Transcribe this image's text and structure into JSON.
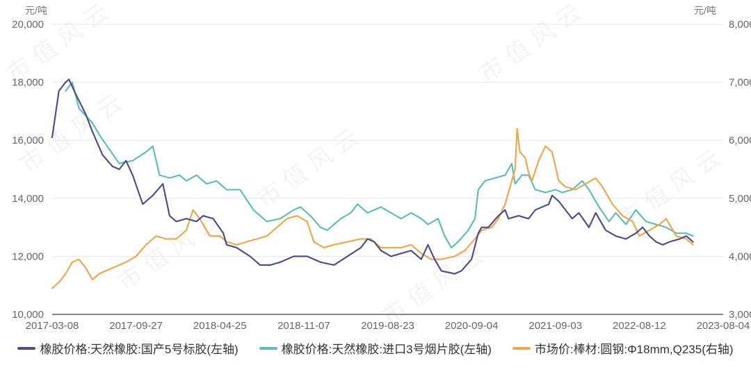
{
  "chart_data": {
    "type": "line",
    "left_unit": "元/吨",
    "right_unit": "元/吨",
    "left_axis": {
      "min": 10000,
      "max": 20000,
      "ticks": [
        "10,000",
        "12,000",
        "14,000",
        "16,000",
        "18,000",
        "20,000"
      ]
    },
    "right_axis": {
      "min": 3000,
      "max": 8000,
      "ticks": [
        "3,000",
        "4,000",
        "5,000",
        "6,000",
        "7,000",
        "8,000"
      ]
    },
    "x_ticks": [
      "2017-03-08",
      "2017-09-27",
      "2018-04-25",
      "2018-11-07",
      "2019-08-23",
      "2020-09-04",
      "2021-09-03",
      "2022-08-12",
      "2023-08-04"
    ],
    "legend_position": "bottom",
    "series": [
      {
        "name": "橡胶价格:天然橡胶:国产5号标胶(左轴)",
        "axis": "left",
        "color": "#4b4f8f",
        "points": [
          [
            0,
            16100
          ],
          [
            0.01,
            17700
          ],
          [
            0.02,
            18000
          ],
          [
            0.025,
            18100
          ],
          [
            0.035,
            17600
          ],
          [
            0.05,
            16900
          ],
          [
            0.06,
            16300
          ],
          [
            0.075,
            15500
          ],
          [
            0.09,
            15100
          ],
          [
            0.1,
            15000
          ],
          [
            0.11,
            15300
          ],
          [
            0.12,
            14800
          ],
          [
            0.135,
            13800
          ],
          [
            0.15,
            14100
          ],
          [
            0.165,
            14500
          ],
          [
            0.175,
            13400
          ],
          [
            0.185,
            13200
          ],
          [
            0.2,
            13300
          ],
          [
            0.215,
            13200
          ],
          [
            0.225,
            13400
          ],
          [
            0.24,
            13300
          ],
          [
            0.255,
            12800
          ],
          [
            0.26,
            12400
          ],
          [
            0.275,
            12300
          ],
          [
            0.295,
            12000
          ],
          [
            0.31,
            11700
          ],
          [
            0.325,
            11700
          ],
          [
            0.34,
            11800
          ],
          [
            0.36,
            12000
          ],
          [
            0.38,
            12000
          ],
          [
            0.4,
            11800
          ],
          [
            0.42,
            11700
          ],
          [
            0.44,
            12000
          ],
          [
            0.46,
            12300
          ],
          [
            0.47,
            12600
          ],
          [
            0.48,
            12500
          ],
          [
            0.49,
            12200
          ],
          [
            0.505,
            12000
          ],
          [
            0.52,
            12100
          ],
          [
            0.535,
            12200
          ],
          [
            0.55,
            11900
          ],
          [
            0.56,
            12400
          ],
          [
            0.57,
            11900
          ],
          [
            0.58,
            11500
          ],
          [
            0.6,
            11400
          ],
          [
            0.61,
            11500
          ],
          [
            0.625,
            11900
          ],
          [
            0.635,
            12800
          ],
          [
            0.64,
            13000
          ],
          [
            0.65,
            13000
          ],
          [
            0.665,
            13400
          ],
          [
            0.675,
            13600
          ],
          [
            0.68,
            13300
          ],
          [
            0.695,
            13400
          ],
          [
            0.71,
            13300
          ],
          [
            0.72,
            13600
          ],
          [
            0.74,
            13800
          ],
          [
            0.745,
            14100
          ],
          [
            0.755,
            13900
          ],
          [
            0.765,
            13600
          ],
          [
            0.775,
            13300
          ],
          [
            0.785,
            13500
          ],
          [
            0.8,
            13000
          ],
          [
            0.81,
            13500
          ],
          [
            0.825,
            12900
          ],
          [
            0.84,
            12700
          ],
          [
            0.855,
            12600
          ],
          [
            0.87,
            12800
          ],
          [
            0.88,
            13000
          ],
          [
            0.89,
            12700
          ],
          [
            0.9,
            12500
          ],
          [
            0.91,
            12400
          ],
          [
            0.92,
            12500
          ],
          [
            0.935,
            12600
          ],
          [
            0.945,
            12700
          ],
          [
            0.955,
            12500
          ]
        ]
      },
      {
        "name": "橡胶价格:天然橡胶:进口3号烟片胶(左轴)",
        "axis": "left",
        "color": "#5cc0b0",
        "points": [
          [
            0.02,
            17700
          ],
          [
            0.03,
            18000
          ],
          [
            0.04,
            17100
          ],
          [
            0.06,
            16600
          ],
          [
            0.07,
            16200
          ],
          [
            0.085,
            15700
          ],
          [
            0.1,
            15200
          ],
          [
            0.12,
            15300
          ],
          [
            0.14,
            15600
          ],
          [
            0.15,
            15800
          ],
          [
            0.16,
            14800
          ],
          [
            0.175,
            14700
          ],
          [
            0.19,
            14800
          ],
          [
            0.2,
            14600
          ],
          [
            0.215,
            14800
          ],
          [
            0.23,
            14500
          ],
          [
            0.245,
            14600
          ],
          [
            0.26,
            14300
          ],
          [
            0.28,
            14300
          ],
          [
            0.3,
            13600
          ],
          [
            0.32,
            13200
          ],
          [
            0.34,
            13300
          ],
          [
            0.36,
            13600
          ],
          [
            0.37,
            13700
          ],
          [
            0.385,
            13400
          ],
          [
            0.4,
            13000
          ],
          [
            0.41,
            12900
          ],
          [
            0.43,
            13300
          ],
          [
            0.445,
            13500
          ],
          [
            0.455,
            13800
          ],
          [
            0.47,
            13500
          ],
          [
            0.49,
            13700
          ],
          [
            0.505,
            13500
          ],
          [
            0.52,
            13300
          ],
          [
            0.535,
            13500
          ],
          [
            0.55,
            13300
          ],
          [
            0.56,
            13100
          ],
          [
            0.575,
            13300
          ],
          [
            0.585,
            12700
          ],
          [
            0.595,
            12300
          ],
          [
            0.605,
            12500
          ],
          [
            0.62,
            12900
          ],
          [
            0.63,
            13300
          ],
          [
            0.635,
            14300
          ],
          [
            0.645,
            14600
          ],
          [
            0.66,
            14700
          ],
          [
            0.675,
            14800
          ],
          [
            0.685,
            15200
          ],
          [
            0.69,
            14500
          ],
          [
            0.7,
            14800
          ],
          [
            0.71,
            14800
          ],
          [
            0.72,
            14300
          ],
          [
            0.735,
            14200
          ],
          [
            0.75,
            14300
          ],
          [
            0.76,
            14200
          ],
          [
            0.775,
            14300
          ],
          [
            0.79,
            14600
          ],
          [
            0.8,
            14300
          ],
          [
            0.815,
            13700
          ],
          [
            0.83,
            13200
          ],
          [
            0.84,
            13500
          ],
          [
            0.855,
            13100
          ],
          [
            0.87,
            13600
          ],
          [
            0.885,
            13200
          ],
          [
            0.9,
            13100
          ],
          [
            0.915,
            13000
          ],
          [
            0.93,
            12800
          ],
          [
            0.945,
            12800
          ],
          [
            0.955,
            12700
          ]
        ]
      },
      {
        "name": "市场价:棒材:圆钢:Φ18mm,Q235(右轴)",
        "axis": "right",
        "color": "#f0a64a",
        "points": [
          [
            0,
            3450
          ],
          [
            0.01,
            3550
          ],
          [
            0.02,
            3700
          ],
          [
            0.03,
            3900
          ],
          [
            0.04,
            3950
          ],
          [
            0.05,
            3800
          ],
          [
            0.06,
            3600
          ],
          [
            0.07,
            3700
          ],
          [
            0.08,
            3750
          ],
          [
            0.09,
            3800
          ],
          [
            0.1,
            3850
          ],
          [
            0.11,
            3900
          ],
          [
            0.125,
            4000
          ],
          [
            0.14,
            4200
          ],
          [
            0.155,
            4350
          ],
          [
            0.17,
            4300
          ],
          [
            0.185,
            4300
          ],
          [
            0.2,
            4450
          ],
          [
            0.21,
            4800
          ],
          [
            0.22,
            4650
          ],
          [
            0.235,
            4350
          ],
          [
            0.25,
            4350
          ],
          [
            0.26,
            4250
          ],
          [
            0.275,
            4200
          ],
          [
            0.29,
            4250
          ],
          [
            0.305,
            4300
          ],
          [
            0.32,
            4350
          ],
          [
            0.335,
            4500
          ],
          [
            0.35,
            4650
          ],
          [
            0.365,
            4700
          ],
          [
            0.38,
            4600
          ],
          [
            0.39,
            4250
          ],
          [
            0.405,
            4150
          ],
          [
            0.42,
            4200
          ],
          [
            0.44,
            4250
          ],
          [
            0.46,
            4300
          ],
          [
            0.475,
            4300
          ],
          [
            0.49,
            4150
          ],
          [
            0.505,
            4150
          ],
          [
            0.52,
            4150
          ],
          [
            0.535,
            4200
          ],
          [
            0.55,
            4050
          ],
          [
            0.565,
            3950
          ],
          [
            0.58,
            3950
          ],
          [
            0.6,
            4000
          ],
          [
            0.615,
            4100
          ],
          [
            0.63,
            4300
          ],
          [
            0.64,
            4450
          ],
          [
            0.655,
            4500
          ],
          [
            0.665,
            4650
          ],
          [
            0.675,
            4900
          ],
          [
            0.685,
            5300
          ],
          [
            0.69,
            5500
          ],
          [
            0.693,
            6200
          ],
          [
            0.697,
            5800
          ],
          [
            0.705,
            5700
          ],
          [
            0.71,
            5450
          ],
          [
            0.715,
            5300
          ],
          [
            0.725,
            5650
          ],
          [
            0.735,
            5900
          ],
          [
            0.745,
            5800
          ],
          [
            0.755,
            5300
          ],
          [
            0.765,
            5200
          ],
          [
            0.78,
            5150
          ],
          [
            0.795,
            5250
          ],
          [
            0.81,
            5350
          ],
          [
            0.82,
            5200
          ],
          [
            0.835,
            4900
          ],
          [
            0.85,
            4700
          ],
          [
            0.865,
            4600
          ],
          [
            0.875,
            4350
          ],
          [
            0.89,
            4450
          ],
          [
            0.905,
            4550
          ],
          [
            0.915,
            4650
          ],
          [
            0.93,
            4350
          ],
          [
            0.945,
            4300
          ],
          [
            0.955,
            4200
          ]
        ]
      }
    ]
  }
}
